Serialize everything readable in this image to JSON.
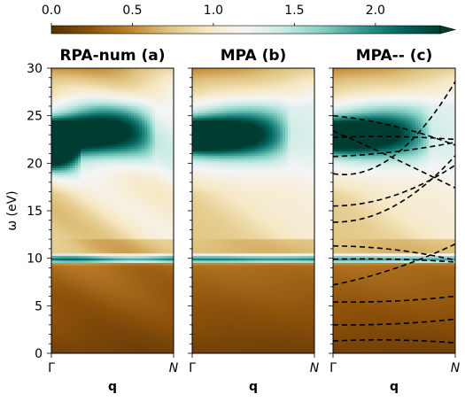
{
  "chart_data": {
    "type": "heatmap",
    "colorbar": {
      "ticks": [
        "0.0",
        "0.5",
        "1.0",
        "1.5",
        "2.0"
      ],
      "tick_values": [
        0,
        0.5,
        1.0,
        1.5,
        2.0
      ],
      "range": [
        0,
        2.4
      ],
      "colormap": "BrBG",
      "extend": "max"
    },
    "y_axis": {
      "label": "ω (eV)",
      "range": [
        0,
        30
      ],
      "ticks": [
        "0",
        "5",
        "10",
        "15",
        "20",
        "25",
        "30"
      ],
      "tick_values": [
        0,
        5,
        10,
        15,
        20,
        25,
        30
      ]
    },
    "x_axis": {
      "label": "q",
      "ticks": [
        "Γ",
        "N"
      ]
    },
    "panels": [
      {
        "title": "RPA-num (a)",
        "peaks": [
          {
            "omega": 23.0,
            "q_start": 0.0,
            "q_end": 0.85,
            "strength": 2.4
          },
          {
            "omega": 20.8,
            "q_start": 0.0,
            "q_end": 0.25,
            "strength": 1.6
          },
          {
            "omega": 9.9,
            "q_start": 0.0,
            "q_end": 1.0,
            "strength": 0.9
          }
        ]
      },
      {
        "title": "MPA (b)",
        "peaks": [
          {
            "omega": 22.9,
            "q_start": 0.0,
            "q_end": 0.8,
            "strength": 2.4
          },
          {
            "omega": 9.9,
            "q_start": 0.0,
            "q_end": 1.0,
            "strength": 0.9
          }
        ]
      },
      {
        "title": "MPA-- (c)",
        "peaks": [
          {
            "omega": 22.9,
            "q_start": 0.0,
            "q_end": 0.8,
            "strength": 2.2
          },
          {
            "omega": 9.9,
            "q_start": 0.0,
            "q_end": 1.0,
            "strength": 0.8
          }
        ],
        "dashed_bands": [
          [
            1.3,
            1.4,
            1.1
          ],
          [
            3.0,
            3.1,
            3.6
          ],
          [
            5.4,
            5.5,
            6.0
          ],
          [
            7.2,
            8.9,
            11.5
          ],
          [
            9.9,
            9.9,
            9.6
          ],
          [
            11.3,
            10.9,
            9.8
          ],
          [
            13.8,
            15.5,
            20.8
          ],
          [
            15.5,
            16.6,
            19.8
          ],
          [
            18.9,
            20.8,
            28.6
          ],
          [
            20.7,
            21.2,
            22.2
          ],
          [
            22.7,
            22.8,
            22.5
          ],
          [
            23.4,
            20.5,
            17.4
          ],
          [
            25.0,
            23.9,
            21.9
          ]
        ]
      }
    ]
  }
}
